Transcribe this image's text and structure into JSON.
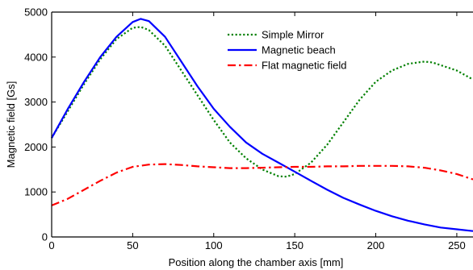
{
  "chart_data": {
    "type": "line",
    "title": "",
    "xlabel": "Position along the chamber axis [mm]",
    "ylabel": "Magnetic field [Gs]",
    "xlim": [
      0,
      260
    ],
    "ylim": [
      0,
      5000
    ],
    "xticks": [
      0,
      50,
      100,
      150,
      200,
      250
    ],
    "yticks": [
      0,
      1000,
      2000,
      3000,
      4000,
      5000
    ],
    "grid": false,
    "legend_position": "top-center",
    "series": [
      {
        "name": "Simple Mirror",
        "color": "#008000",
        "style": "dotted",
        "x": [
          0,
          10,
          20,
          30,
          40,
          50,
          55,
          60,
          70,
          80,
          90,
          100,
          110,
          120,
          130,
          140,
          145,
          150,
          160,
          170,
          180,
          190,
          200,
          210,
          220,
          230,
          235,
          240,
          250,
          260
        ],
        "y": [
          2200,
          2800,
          3400,
          3950,
          4400,
          4650,
          4670,
          4600,
          4250,
          3700,
          3150,
          2600,
          2100,
          1750,
          1500,
          1350,
          1340,
          1400,
          1650,
          2050,
          2550,
          3050,
          3450,
          3700,
          3850,
          3900,
          3880,
          3820,
          3700,
          3500
        ]
      },
      {
        "name": "Magnetic beach",
        "color": "#0000ff",
        "style": "solid",
        "x": [
          0,
          10,
          20,
          30,
          40,
          50,
          55,
          60,
          70,
          80,
          90,
          100,
          110,
          120,
          130,
          140,
          150,
          160,
          170,
          180,
          190,
          200,
          210,
          220,
          230,
          240,
          250,
          260
        ],
        "y": [
          2200,
          2850,
          3450,
          4000,
          4450,
          4780,
          4850,
          4800,
          4450,
          3900,
          3350,
          2850,
          2450,
          2100,
          1850,
          1650,
          1450,
          1250,
          1050,
          870,
          720,
          580,
          460,
          360,
          280,
          210,
          170,
          130
        ]
      },
      {
        "name": "Flat magnetic field",
        "color": "#ff0000",
        "style": "dashdot",
        "x": [
          0,
          10,
          20,
          30,
          40,
          50,
          60,
          70,
          80,
          90,
          100,
          110,
          120,
          130,
          140,
          150,
          160,
          170,
          180,
          190,
          200,
          210,
          220,
          230,
          240,
          250,
          260
        ],
        "y": [
          700,
          850,
          1050,
          1250,
          1430,
          1560,
          1610,
          1620,
          1600,
          1570,
          1550,
          1530,
          1530,
          1540,
          1550,
          1560,
          1560,
          1570,
          1570,
          1580,
          1580,
          1580,
          1570,
          1540,
          1480,
          1400,
          1280
        ]
      }
    ]
  }
}
